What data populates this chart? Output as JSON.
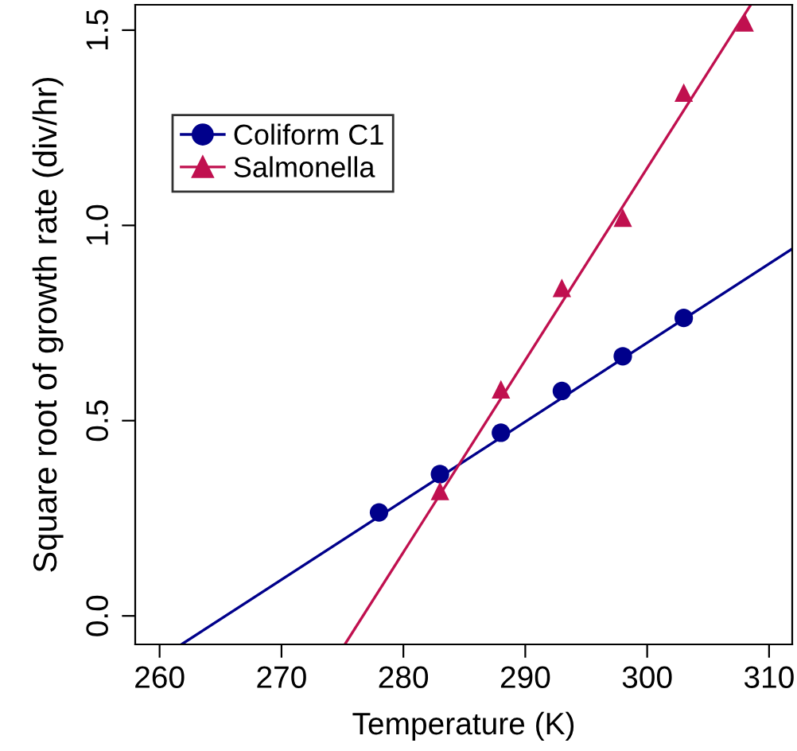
{
  "chart_data": {
    "type": "scatter",
    "xlabel": "Temperature (K)",
    "ylabel": "Square root of growth rate (div/hr)",
    "xlim": [
      258.0,
      311.9
    ],
    "ylim": [
      -0.073,
      1.565
    ],
    "xticks": [
      260,
      270,
      280,
      290,
      300,
      310
    ],
    "yticks": [
      {
        "value": 0,
        "label": "0.0"
      },
      {
        "value": 0.5,
        "label": "0.5"
      },
      {
        "value": 1,
        "label": "1.0"
      },
      {
        "value": 1.5,
        "label": "1.5"
      }
    ],
    "grid": false,
    "legend": "top left",
    "series": [
      {
        "name": "Coliform C1",
        "color": "#00008b",
        "marker": "circle",
        "x": [
          278,
          283,
          288,
          293,
          298,
          303
        ],
        "values": [
          0.265,
          0.363,
          0.469,
          0.576,
          0.665,
          0.763
        ]
      },
      {
        "name": "Salmonella",
        "color": "#c0104f",
        "marker": "triangle",
        "x": [
          283,
          288,
          293,
          298,
          303,
          308
        ],
        "values": [
          0.32,
          0.58,
          0.84,
          1.02,
          1.34,
          1.52
        ]
      },
      {
        "color": "#00008b",
        "type": "line",
        "x": [
          261.8,
          311.9
        ],
        "values": [
          -0.073,
          0.94
        ]
      },
      {
        "color": "#c0104f",
        "type": "line",
        "x": [
          275.2,
          308.5
        ],
        "values": [
          -0.073,
          1.565
        ]
      }
    ]
  }
}
